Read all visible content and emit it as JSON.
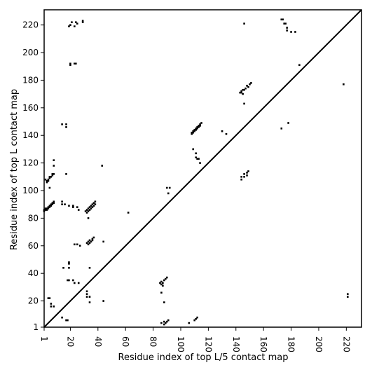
{
  "chart_data": {
    "type": "scatter",
    "title": "",
    "xlabel": "Residue index of top L/5 contact map",
    "ylabel": "Residue index of top L contact map",
    "xlim": [
      1,
      231
    ],
    "ylim": [
      1,
      231
    ],
    "xticks": [
      1,
      20,
      40,
      60,
      80,
      100,
      120,
      140,
      160,
      180,
      200,
      220
    ],
    "yticks": [
      1,
      20,
      40,
      60,
      80,
      100,
      120,
      140,
      160,
      180,
      200,
      220
    ],
    "diagonal": true,
    "grid": false,
    "marker": "square",
    "marker_color": "#000000",
    "series": [
      {
        "name": "",
        "region": "upper-left",
        "points": [
          [
            19,
            219
          ],
          [
            20,
            220
          ],
          [
            21,
            222
          ],
          [
            23,
            219
          ],
          [
            24,
            222
          ],
          [
            25,
            221
          ],
          [
            29,
            223
          ],
          [
            29,
            222
          ],
          [
            20,
            192
          ],
          [
            20,
            191
          ],
          [
            23,
            192
          ],
          [
            24,
            192
          ],
          [
            14,
            148
          ],
          [
            17,
            148
          ],
          [
            17,
            146
          ],
          [
            8,
            122
          ],
          [
            8,
            118
          ],
          [
            43,
            118
          ],
          [
            2,
            108
          ],
          [
            3,
            107
          ],
          [
            3,
            106
          ],
          [
            4,
            108
          ],
          [
            4,
            107
          ],
          [
            5,
            110
          ],
          [
            5,
            109
          ],
          [
            6,
            110
          ],
          [
            7,
            111
          ],
          [
            7,
            112
          ],
          [
            8,
            112
          ],
          [
            5,
            102
          ],
          [
            17,
            112
          ],
          [
            1,
            86
          ],
          [
            1,
            85
          ],
          [
            2,
            87
          ],
          [
            2,
            86
          ],
          [
            3,
            87
          ],
          [
            3,
            86
          ],
          [
            4,
            88
          ],
          [
            4,
            87
          ],
          [
            5,
            89
          ],
          [
            5,
            88
          ],
          [
            6,
            90
          ],
          [
            6,
            89
          ],
          [
            7,
            91
          ],
          [
            7,
            90
          ],
          [
            8,
            92
          ],
          [
            8,
            91
          ],
          [
            14,
            92
          ],
          [
            14,
            90
          ],
          [
            16,
            90
          ],
          [
            19,
            89
          ],
          [
            22,
            88
          ],
          [
            22,
            89
          ],
          [
            25,
            88
          ],
          [
            26,
            86
          ],
          [
            31,
            85
          ],
          [
            32,
            86
          ],
          [
            32,
            84
          ],
          [
            33,
            87
          ],
          [
            33,
            85
          ],
          [
            34,
            88
          ],
          [
            34,
            86
          ],
          [
            35,
            89
          ],
          [
            35,
            87
          ],
          [
            36,
            90
          ],
          [
            36,
            88
          ],
          [
            37,
            91
          ],
          [
            37,
            89
          ],
          [
            38,
            92
          ],
          [
            38,
            90
          ],
          [
            33,
            80
          ],
          [
            23,
            61
          ],
          [
            25,
            61
          ],
          [
            27,
            60
          ],
          [
            32,
            62
          ],
          [
            33,
            63
          ],
          [
            33,
            61
          ],
          [
            34,
            64
          ],
          [
            34,
            62
          ],
          [
            35,
            63
          ],
          [
            36,
            65
          ],
          [
            36,
            64
          ],
          [
            37,
            66
          ],
          [
            44,
            63
          ],
          [
            34,
            44
          ],
          [
            15,
            44
          ],
          [
            19,
            44
          ],
          [
            19,
            48
          ],
          [
            19,
            47
          ],
          [
            18,
            35
          ],
          [
            19,
            35
          ],
          [
            22,
            35
          ],
          [
            23,
            33
          ],
          [
            26,
            33
          ],
          [
            32,
            27
          ],
          [
            32,
            25
          ],
          [
            32,
            23
          ],
          [
            34,
            23
          ],
          [
            34,
            19
          ],
          [
            44,
            20
          ],
          [
            4,
            22
          ],
          [
            5,
            22
          ],
          [
            6,
            18
          ],
          [
            6,
            16
          ],
          [
            8,
            16
          ],
          [
            14,
            8
          ],
          [
            17,
            6
          ],
          [
            18,
            6
          ],
          [
            62,
            84
          ],
          [
            90,
            102
          ],
          [
            92,
            102
          ],
          [
            91,
            98
          ]
        ]
      },
      {
        "name": "",
        "region": "lower-right",
        "points": [
          [
            146,
            221
          ],
          [
            173,
            224
          ],
          [
            174,
            224
          ],
          [
            175,
            221
          ],
          [
            176,
            221
          ],
          [
            177,
            218
          ],
          [
            177,
            216
          ],
          [
            180,
            215
          ],
          [
            183,
            215
          ],
          [
            186,
            191
          ],
          [
            218,
            177
          ],
          [
            143,
            171
          ],
          [
            144,
            171
          ],
          [
            144,
            172
          ],
          [
            145,
            173
          ],
          [
            145,
            170
          ],
          [
            146,
            173
          ],
          [
            147,
            174
          ],
          [
            148,
            176
          ],
          [
            149,
            175
          ],
          [
            150,
            177
          ],
          [
            151,
            178
          ],
          [
            146,
            163
          ],
          [
            173,
            145
          ],
          [
            178,
            149
          ],
          [
            108,
            142
          ],
          [
            108,
            141
          ],
          [
            109,
            143
          ],
          [
            109,
            142
          ],
          [
            110,
            144
          ],
          [
            110,
            143
          ],
          [
            111,
            145
          ],
          [
            111,
            144
          ],
          [
            112,
            146
          ],
          [
            112,
            145
          ],
          [
            113,
            147
          ],
          [
            113,
            146
          ],
          [
            114,
            148
          ],
          [
            114,
            147
          ],
          [
            115,
            149
          ],
          [
            109,
            130
          ],
          [
            111,
            127
          ],
          [
            111,
            124
          ],
          [
            112,
            123
          ],
          [
            113,
            123
          ],
          [
            114,
            120
          ],
          [
            130,
            143
          ],
          [
            133,
            141
          ],
          [
            144,
            110
          ],
          [
            144,
            108
          ],
          [
            146,
            110
          ],
          [
            146,
            112
          ],
          [
            148,
            113
          ],
          [
            148,
            111
          ],
          [
            149,
            114
          ],
          [
            85,
            33
          ],
          [
            86,
            32
          ],
          [
            86,
            34
          ],
          [
            87,
            31
          ],
          [
            87,
            33
          ],
          [
            88,
            35
          ],
          [
            89,
            36
          ],
          [
            90,
            37
          ],
          [
            86,
            26
          ],
          [
            88,
            19
          ],
          [
            86,
            4
          ],
          [
            88,
            5
          ],
          [
            88,
            3
          ],
          [
            89,
            4
          ],
          [
            90,
            5
          ],
          [
            91,
            6
          ],
          [
            106,
            4
          ],
          [
            110,
            6
          ],
          [
            111,
            7
          ],
          [
            112,
            8
          ],
          [
            221,
            25
          ],
          [
            221,
            23
          ]
        ]
      }
    ]
  }
}
